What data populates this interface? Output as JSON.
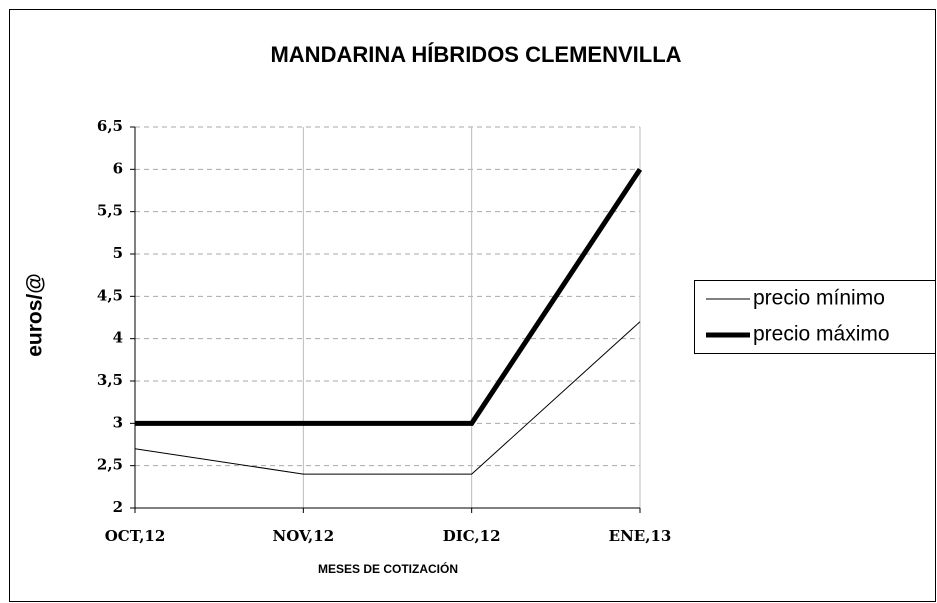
{
  "chart_data": {
    "type": "line",
    "title": "MANDARINA HÍBRIDOS CLEMENVILLA",
    "x_label": "MESES DE COTIZACIÓN",
    "y_label": "euros/@",
    "categories": [
      "OCT,12",
      "NOV,12",
      "DIC,12",
      "ENE,13"
    ],
    "series": [
      {
        "name": "precio mínimo",
        "color": "#000000",
        "values": [
          2.7,
          2.4,
          2.4,
          4.2
        ]
      },
      {
        "name": "precio máximo",
        "color": "#000000",
        "values": [
          3,
          3,
          3,
          6
        ]
      }
    ],
    "ylim": [
      2,
      6.5
    ],
    "yticks": [
      2,
      {
        "value": 2.5,
        "label": "2,5"
      },
      3,
      {
        "value": 3.5,
        "label": "3,5"
      },
      4,
      {
        "value": 4.5,
        "label": "4,5"
      },
      5,
      {
        "value": 5.5,
        "label": "5,5"
      },
      6,
      {
        "value": 6.5,
        "label": "6,5"
      }
    ],
    "grid": true,
    "legend": "right"
  }
}
